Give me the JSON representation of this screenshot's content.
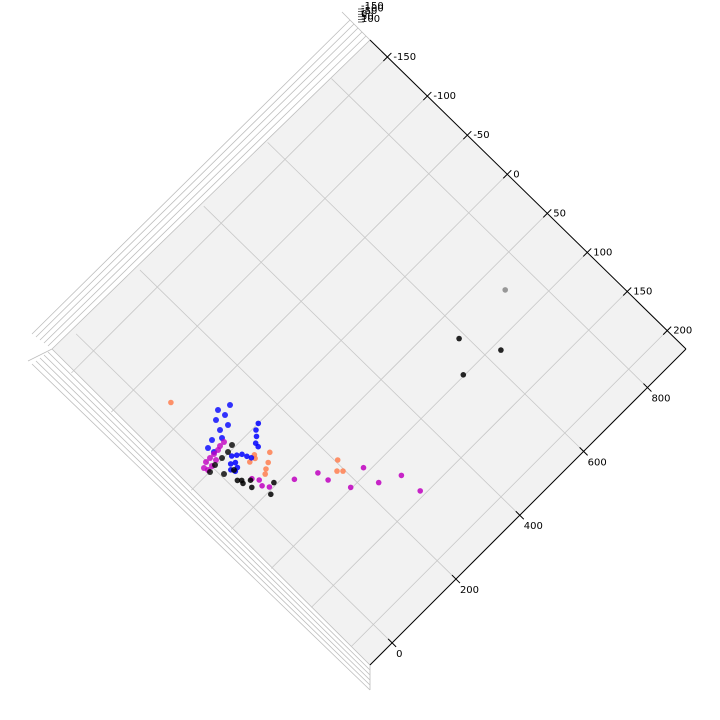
{
  "chart_data": {
    "type": "scatter",
    "projection": "3d",
    "title": "",
    "xlabel": "",
    "ylabel": "",
    "zlabel": "",
    "grid": true,
    "legend": "none",
    "x_ticks": [
      "-150",
      "-100",
      "-50",
      "0",
      "50",
      "100",
      "150",
      "200"
    ],
    "y_ticks": [
      "0",
      "200",
      "400",
      "600",
      "800"
    ],
    "z_ticks": [
      "100",
      "50",
      "0",
      "-50",
      "-100",
      "-150"
    ],
    "x_range": [
      -160,
      240
    ],
    "y_range": [
      -20,
      940
    ],
    "series": [
      {
        "color": "#ff7f50",
        "points": [
          [
            -163,
            20
          ],
          [
            98,
            200
          ],
          [
            110,
            180
          ],
          [
            117,
            190
          ],
          [
            30,
            55
          ],
          [
            25,
            65
          ],
          [
            -2,
            50
          ],
          [
            0,
            65
          ],
          [
            20,
            80
          ],
          [
            10,
            100
          ],
          [
            -5,
            70
          ]
        ]
      },
      {
        "color": "#0000ff",
        "points": [
          [
            -37,
            130
          ],
          [
            -32,
            115
          ],
          [
            -24,
            105
          ],
          [
            -17,
            92
          ],
          [
            -10,
            90
          ],
          [
            -5,
            60
          ],
          [
            -12,
            55
          ],
          [
            -20,
            50
          ],
          [
            -25,
            40
          ],
          [
            -30,
            30
          ],
          [
            -18,
            25
          ],
          [
            -10,
            20
          ],
          [
            -22,
            15
          ],
          [
            -15,
            5
          ],
          [
            -8,
            10
          ]
        ]
      },
      {
        "color": "#c000c0",
        "points": [
          [
            137,
            230
          ],
          [
            190,
            280
          ],
          [
            230,
            285
          ],
          [
            172,
            230
          ],
          [
            90,
            145
          ],
          [
            110,
            150
          ],
          [
            145,
            175
          ],
          [
            70,
            95
          ],
          [
            30,
            35
          ],
          [
            50,
            40
          ],
          [
            20,
            25
          ],
          [
            40,
            30
          ]
        ]
      },
      {
        "color": "#000000",
        "points": [
          [
            50,
            55
          ],
          [
            60,
            30
          ],
          [
            30,
            10
          ],
          [
            10,
            5
          ],
          [
            20,
            20
          ],
          [
            145,
            555
          ],
          [
            98,
            610
          ],
          [
            160,
            660
          ],
          [
            5,
            -2
          ],
          [
            15,
            2
          ]
        ]
      },
      {
        "color": "#888888",
        "points": [
          [
            95,
            770
          ]
        ]
      }
    ]
  }
}
